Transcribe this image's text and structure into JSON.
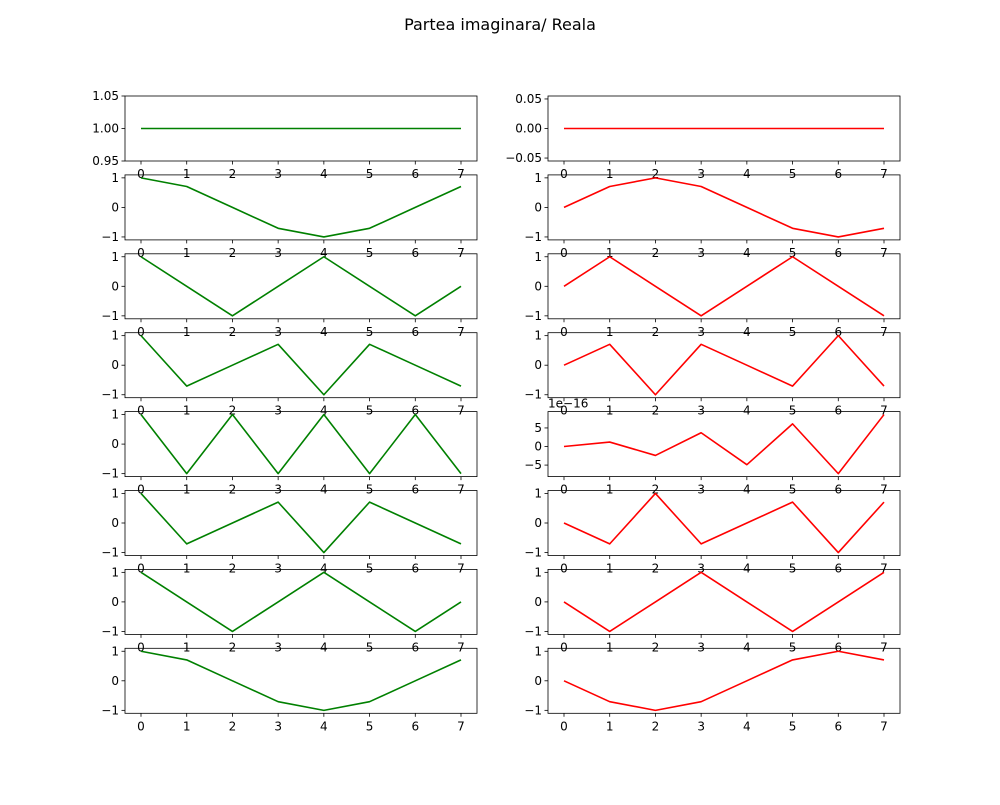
{
  "figure": {
    "title": "Partea imaginara/ Reala"
  },
  "chart_data": [
    {
      "type": "line",
      "color": "#008000",
      "x": [
        0,
        1,
        2,
        3,
        4,
        5,
        6,
        7
      ],
      "values": [
        1,
        1,
        1,
        1,
        1,
        1,
        1,
        1
      ],
      "ylim": [
        0.95,
        1.05
      ],
      "yticks": [
        "0.95",
        "1.00",
        "1.05"
      ],
      "ytick_values": [
        0.95,
        1.0,
        1.05
      ],
      "xticks": [
        "0",
        "1",
        "2",
        "3",
        "4",
        "5",
        "6",
        "7"
      ],
      "offset_label": ""
    },
    {
      "type": "line",
      "color": "#ff0000",
      "x": [
        0,
        1,
        2,
        3,
        4,
        5,
        6,
        7
      ],
      "values": [
        0,
        0,
        0,
        0,
        0,
        0,
        0,
        0
      ],
      "ylim": [
        -0.055,
        0.055
      ],
      "yticks": [
        "−0.05",
        "0.00",
        "0.05"
      ],
      "ytick_values": [
        -0.05,
        0.0,
        0.05
      ],
      "xticks": [
        "0",
        "1",
        "2",
        "3",
        "4",
        "5",
        "6",
        "7"
      ],
      "offset_label": ""
    },
    {
      "type": "line",
      "color": "#008000",
      "x": [
        0,
        1,
        2,
        3,
        4,
        5,
        6,
        7
      ],
      "values": [
        1,
        0.7071,
        0,
        -0.7071,
        -1,
        -0.7071,
        0,
        0.7071
      ],
      "ylim": [
        -1.1,
        1.1
      ],
      "yticks": [
        "−1",
        "0",
        "1"
      ],
      "ytick_values": [
        -1,
        0,
        1
      ],
      "xticks": [
        "0",
        "1",
        "2",
        "3",
        "4",
        "5",
        "6",
        "7"
      ],
      "offset_label": ""
    },
    {
      "type": "line",
      "color": "#ff0000",
      "x": [
        0,
        1,
        2,
        3,
        4,
        5,
        6,
        7
      ],
      "values": [
        0,
        0.7071,
        1,
        0.7071,
        0,
        -0.7071,
        -1,
        -0.7071
      ],
      "ylim": [
        -1.1,
        1.1
      ],
      "yticks": [
        "−1",
        "0",
        "1"
      ],
      "ytick_values": [
        -1,
        0,
        1
      ],
      "xticks": [
        "0",
        "1",
        "2",
        "3",
        "4",
        "5",
        "6",
        "7"
      ],
      "offset_label": ""
    },
    {
      "type": "line",
      "color": "#008000",
      "x": [
        0,
        1,
        2,
        3,
        4,
        5,
        6,
        7
      ],
      "values": [
        1,
        0,
        -1,
        0,
        1,
        0,
        -1,
        0
      ],
      "ylim": [
        -1.1,
        1.1
      ],
      "yticks": [
        "−1",
        "0",
        "1"
      ],
      "ytick_values": [
        -1,
        0,
        1
      ],
      "xticks": [
        "0",
        "1",
        "2",
        "3",
        "4",
        "5",
        "6",
        "7"
      ],
      "offset_label": ""
    },
    {
      "type": "line",
      "color": "#ff0000",
      "x": [
        0,
        1,
        2,
        3,
        4,
        5,
        6,
        7
      ],
      "values": [
        0,
        1,
        0,
        -1,
        0,
        1,
        0,
        -1
      ],
      "ylim": [
        -1.1,
        1.1
      ],
      "yticks": [
        "−1",
        "0",
        "1"
      ],
      "ytick_values": [
        -1,
        0,
        1
      ],
      "xticks": [
        "0",
        "1",
        "2",
        "3",
        "4",
        "5",
        "6",
        "7"
      ],
      "offset_label": ""
    },
    {
      "type": "line",
      "color": "#008000",
      "x": [
        0,
        1,
        2,
        3,
        4,
        5,
        6,
        7
      ],
      "values": [
        1,
        -0.7071,
        0,
        0.7071,
        -1,
        0.7071,
        0,
        -0.7071
      ],
      "ylim": [
        -1.1,
        1.1
      ],
      "yticks": [
        "−1",
        "0",
        "1"
      ],
      "ytick_values": [
        -1,
        0,
        1
      ],
      "xticks": [
        "0",
        "1",
        "2",
        "3",
        "4",
        "5",
        "6",
        "7"
      ],
      "offset_label": ""
    },
    {
      "type": "line",
      "color": "#ff0000",
      "x": [
        0,
        1,
        2,
        3,
        4,
        5,
        6,
        7
      ],
      "values": [
        0,
        0.7071,
        -1,
        0.7071,
        0,
        -0.7071,
        1,
        -0.7071
      ],
      "ylim": [
        -1.1,
        1.1
      ],
      "yticks": [
        "−1",
        "0",
        "1"
      ],
      "ytick_values": [
        -1,
        0,
        1
      ],
      "xticks": [
        "0",
        "1",
        "2",
        "3",
        "4",
        "5",
        "6",
        "7"
      ],
      "offset_label": ""
    },
    {
      "type": "line",
      "color": "#008000",
      "x": [
        0,
        1,
        2,
        3,
        4,
        5,
        6,
        7
      ],
      "values": [
        1,
        -1,
        1,
        -1,
        1,
        -1,
        1,
        -1
      ],
      "ylim": [
        -1.1,
        1.1
      ],
      "yticks": [
        "−1",
        "0",
        "1"
      ],
      "ytick_values": [
        -1,
        0,
        1
      ],
      "xticks": [
        "0",
        "1",
        "2",
        "3",
        "4",
        "5",
        "6",
        "7"
      ],
      "offset_label": ""
    },
    {
      "type": "line",
      "color": "#ff0000",
      "x": [
        0,
        1,
        2,
        3,
        4,
        5,
        6,
        7
      ],
      "values": [
        0,
        1.2,
        -2.4,
        3.7,
        -4.9,
        6.1,
        -7.3,
        8.6
      ],
      "ylim": [
        -8.1,
        9.4
      ],
      "yticks": [
        "−5",
        "0",
        "5"
      ],
      "ytick_values": [
        -5,
        0,
        5
      ],
      "xticks": [
        "0",
        "1",
        "2",
        "3",
        "4",
        "5",
        "6",
        "7"
      ],
      "offset_label": "1e−16"
    },
    {
      "type": "line",
      "color": "#008000",
      "x": [
        0,
        1,
        2,
        3,
        4,
        5,
        6,
        7
      ],
      "values": [
        1,
        -0.7071,
        0,
        0.7071,
        -1,
        0.7071,
        0,
        -0.7071
      ],
      "ylim": [
        -1.1,
        1.1
      ],
      "yticks": [
        "−1",
        "0",
        "1"
      ],
      "ytick_values": [
        -1,
        0,
        1
      ],
      "xticks": [
        "0",
        "1",
        "2",
        "3",
        "4",
        "5",
        "6",
        "7"
      ],
      "offset_label": ""
    },
    {
      "type": "line",
      "color": "#ff0000",
      "x": [
        0,
        1,
        2,
        3,
        4,
        5,
        6,
        7
      ],
      "values": [
        0,
        -0.7071,
        1,
        -0.7071,
        0,
        0.7071,
        -1,
        0.7071
      ],
      "ylim": [
        -1.1,
        1.1
      ],
      "yticks": [
        "−1",
        "0",
        "1"
      ],
      "ytick_values": [
        -1,
        0,
        1
      ],
      "xticks": [
        "0",
        "1",
        "2",
        "3",
        "4",
        "5",
        "6",
        "7"
      ],
      "offset_label": ""
    },
    {
      "type": "line",
      "color": "#008000",
      "x": [
        0,
        1,
        2,
        3,
        4,
        5,
        6,
        7
      ],
      "values": [
        1,
        0,
        -1,
        0,
        1,
        0,
        -1,
        0
      ],
      "ylim": [
        -1.1,
        1.1
      ],
      "yticks": [
        "−1",
        "0",
        "1"
      ],
      "ytick_values": [
        -1,
        0,
        1
      ],
      "xticks": [
        "0",
        "1",
        "2",
        "3",
        "4",
        "5",
        "6",
        "7"
      ],
      "offset_label": ""
    },
    {
      "type": "line",
      "color": "#ff0000",
      "x": [
        0,
        1,
        2,
        3,
        4,
        5,
        6,
        7
      ],
      "values": [
        0,
        -1,
        0,
        1,
        0,
        -1,
        0,
        1
      ],
      "ylim": [
        -1.1,
        1.1
      ],
      "yticks": [
        "−1",
        "0",
        "1"
      ],
      "ytick_values": [
        -1,
        0,
        1
      ],
      "xticks": [
        "0",
        "1",
        "2",
        "3",
        "4",
        "5",
        "6",
        "7"
      ],
      "offset_label": ""
    },
    {
      "type": "line",
      "color": "#008000",
      "x": [
        0,
        1,
        2,
        3,
        4,
        5,
        6,
        7
      ],
      "values": [
        1,
        0.7071,
        0,
        -0.7071,
        -1,
        -0.7071,
        0,
        0.7071
      ],
      "ylim": [
        -1.1,
        1.1
      ],
      "yticks": [
        "−1",
        "0",
        "1"
      ],
      "ytick_values": [
        -1,
        0,
        1
      ],
      "xticks": [
        "0",
        "1",
        "2",
        "3",
        "4",
        "5",
        "6",
        "7"
      ],
      "offset_label": ""
    },
    {
      "type": "line",
      "color": "#ff0000",
      "x": [
        0,
        1,
        2,
        3,
        4,
        5,
        6,
        7
      ],
      "values": [
        0,
        -0.7071,
        -1,
        -0.7071,
        0,
        0.7071,
        1,
        0.7071
      ],
      "ylim": [
        -1.1,
        1.1
      ],
      "yticks": [
        "−1",
        "0",
        "1"
      ],
      "ytick_values": [
        -1,
        0,
        1
      ],
      "xticks": [
        "0",
        "1",
        "2",
        "3",
        "4",
        "5",
        "6",
        "7"
      ],
      "offset_label": ""
    }
  ]
}
